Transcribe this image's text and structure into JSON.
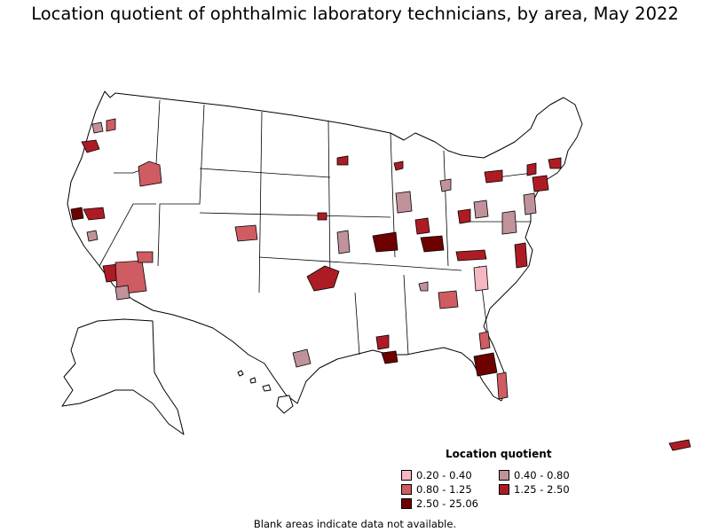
{
  "title": "Location quotient of ophthalmic laboratory technicians, by area, May 2022",
  "legend": {
    "title": "Location quotient",
    "items": [
      {
        "label": "0.20 - 0.40",
        "color": "#f5b8c3"
      },
      {
        "label": "0.40 - 0.80",
        "color": "#c0929a"
      },
      {
        "label": "0.80 - 1.25",
        "color": "#cf5c62"
      },
      {
        "label": "1.25 - 2.50",
        "color": "#ad1c24"
      },
      {
        "label": "2.50 - 25.06",
        "color": "#6e0000"
      }
    ]
  },
  "footnote": "Blank areas indicate data not available.",
  "colors": {
    "outline": "#000000",
    "no_data": "#ffffff"
  }
}
